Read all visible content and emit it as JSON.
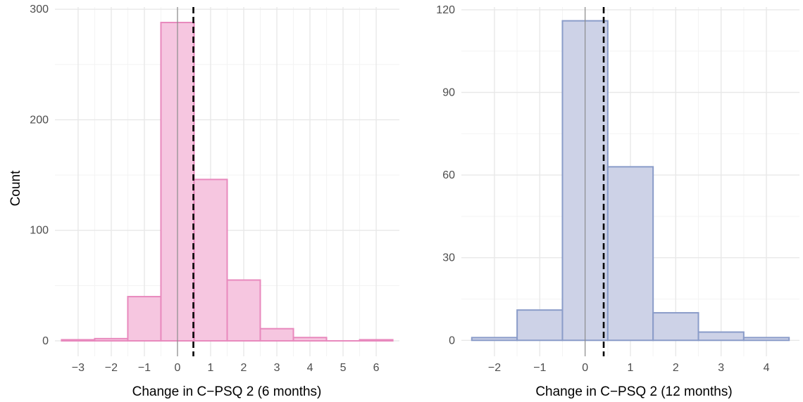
{
  "chart_data": [
    {
      "type": "bar",
      "xlabel": "Change in C−PSQ 2 (6 months)",
      "ylabel": "Count",
      "x_ticks": [
        -3,
        -2,
        -1,
        0,
        1,
        2,
        3,
        4,
        5,
        6
      ],
      "x_tick_labels": [
        "−3",
        "−2",
        "−1",
        "0",
        "1",
        "2",
        "3",
        "4",
        "5",
        "6"
      ],
      "y_ticks": [
        0,
        100,
        200,
        300
      ],
      "y_tick_labels": [
        "0",
        "100",
        "200",
        "300"
      ],
      "xlim": [
        -3.7,
        6.7
      ],
      "ylim": [
        -14,
        302
      ],
      "bin_width": 1,
      "bins": [
        {
          "center": -3,
          "count": 1
        },
        {
          "center": -2,
          "count": 2
        },
        {
          "center": -1,
          "count": 40
        },
        {
          "center": 0,
          "count": 288
        },
        {
          "center": 1,
          "count": 146
        },
        {
          "center": 2,
          "count": 55
        },
        {
          "center": 3,
          "count": 11
        },
        {
          "center": 4,
          "count": 3
        },
        {
          "center": 5,
          "count": 0
        },
        {
          "center": 6,
          "count": 1
        }
      ],
      "zero_line": 0,
      "mean_line": 0.48,
      "grid": true,
      "fill_color": "#f6c6e0",
      "edge_color": "#e889bd",
      "zero_line_color": "#8c8c8c",
      "mean_line_color": "#000000"
    },
    {
      "type": "bar",
      "xlabel": "Change in C−PSQ 2 (12 months)",
      "ylabel": "",
      "x_ticks": [
        -2,
        -1,
        0,
        1,
        2,
        3,
        4
      ],
      "x_tick_labels": [
        "−2",
        "−1",
        "0",
        "1",
        "2",
        "3",
        "4"
      ],
      "y_ticks": [
        0,
        30,
        60,
        90,
        120
      ],
      "y_tick_labels": [
        "0",
        "30",
        "60",
        "90",
        "120"
      ],
      "xlim": [
        -2.73,
        4.73
      ],
      "ylim": [
        -5.8,
        121
      ],
      "bin_width": 1,
      "bins": [
        {
          "center": -2,
          "count": 1
        },
        {
          "center": -1,
          "count": 11
        },
        {
          "center": 0,
          "count": 116
        },
        {
          "center": 1,
          "count": 63
        },
        {
          "center": 2,
          "count": 10
        },
        {
          "center": 3,
          "count": 3
        },
        {
          "center": 4,
          "count": 1
        }
      ],
      "zero_line": 0,
      "mean_line": 0.41,
      "grid": true,
      "fill_color": "#cdd2e7",
      "edge_color": "#8a9cc9",
      "zero_line_color": "#8c8c8c",
      "mean_line_color": "#000000"
    }
  ]
}
